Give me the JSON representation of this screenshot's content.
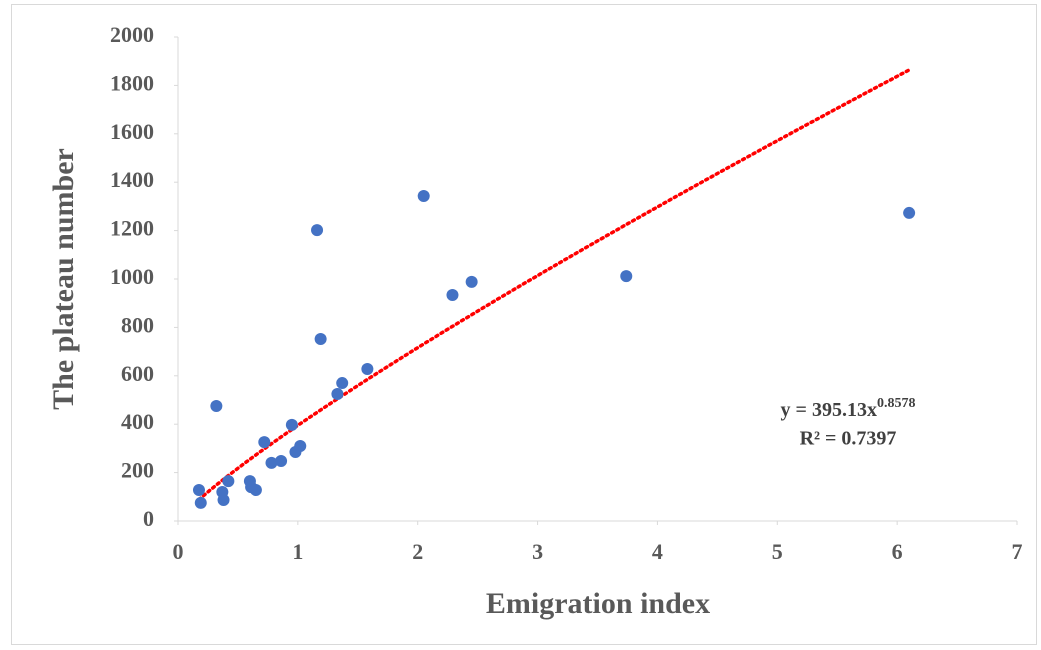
{
  "chart_data": {
    "type": "scatter",
    "xlabel": "Emigration index",
    "ylabel": "The plateau number",
    "series": [
      {
        "color": "#4472c4",
        "x": [
          0.175,
          0.19,
          0.32,
          0.37,
          0.38,
          0.42,
          0.6,
          0.61,
          0.65,
          0.72,
          0.78,
          0.86,
          0.95,
          0.98,
          1.02,
          1.16,
          1.19,
          1.33,
          1.37,
          1.58,
          2.05,
          2.29,
          2.45,
          3.74,
          6.1
        ],
        "values": [
          128,
          75,
          475,
          120,
          87,
          165,
          165,
          140,
          128,
          326,
          240,
          248,
          397,
          285,
          310,
          1202,
          752,
          525,
          570,
          628,
          1343,
          934,
          988,
          1012,
          1273
        ]
      }
    ],
    "trendline": {
      "type": "power",
      "color": "#ff0000",
      "coefficient": 395.13,
      "exponent": 0.8578,
      "equation_label": "y = 395.13x",
      "exponent_label": "0.8578",
      "r2_label": "R² = 0.7397"
    },
    "xlim": [
      0,
      7
    ],
    "xticks": [
      0,
      1,
      2,
      3,
      4,
      5,
      6,
      7
    ],
    "ylim": [
      0,
      2000
    ],
    "yticks": [
      0,
      200,
      400,
      600,
      800,
      1000,
      1200,
      1400,
      1600,
      1800,
      2000
    ],
    "grid": false
  }
}
